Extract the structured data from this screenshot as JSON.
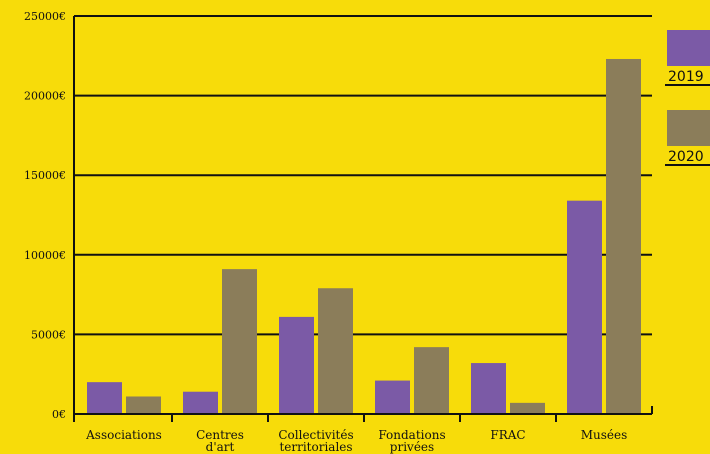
{
  "chart_data": {
    "type": "bar",
    "categories": [
      [
        "Associations"
      ],
      [
        "Centres",
        "d'art"
      ],
      [
        "Collectivités",
        "territoriales"
      ],
      [
        "Fondations",
        "privées"
      ],
      [
        "FRAC"
      ],
      [
        "Musées"
      ]
    ],
    "series": [
      {
        "name": "2019",
        "color": "#7b5aa6",
        "values": [
          2000,
          1400,
          6100,
          2100,
          3200,
          13400
        ]
      },
      {
        "name": "2020",
        "color": "#8b7d5a",
        "values": [
          1100,
          9100,
          7900,
          4200,
          700,
          22300
        ]
      }
    ],
    "ylim": [
      0,
      25000
    ],
    "yticks": [
      0,
      5000,
      10000,
      15000,
      20000,
      25000
    ],
    "ytick_labels": [
      "0€",
      "5000€",
      "10000€",
      "15000€",
      "20000€",
      "25000€"
    ],
    "grid": true,
    "legend_position": "right",
    "background": "#f7dc0a"
  }
}
